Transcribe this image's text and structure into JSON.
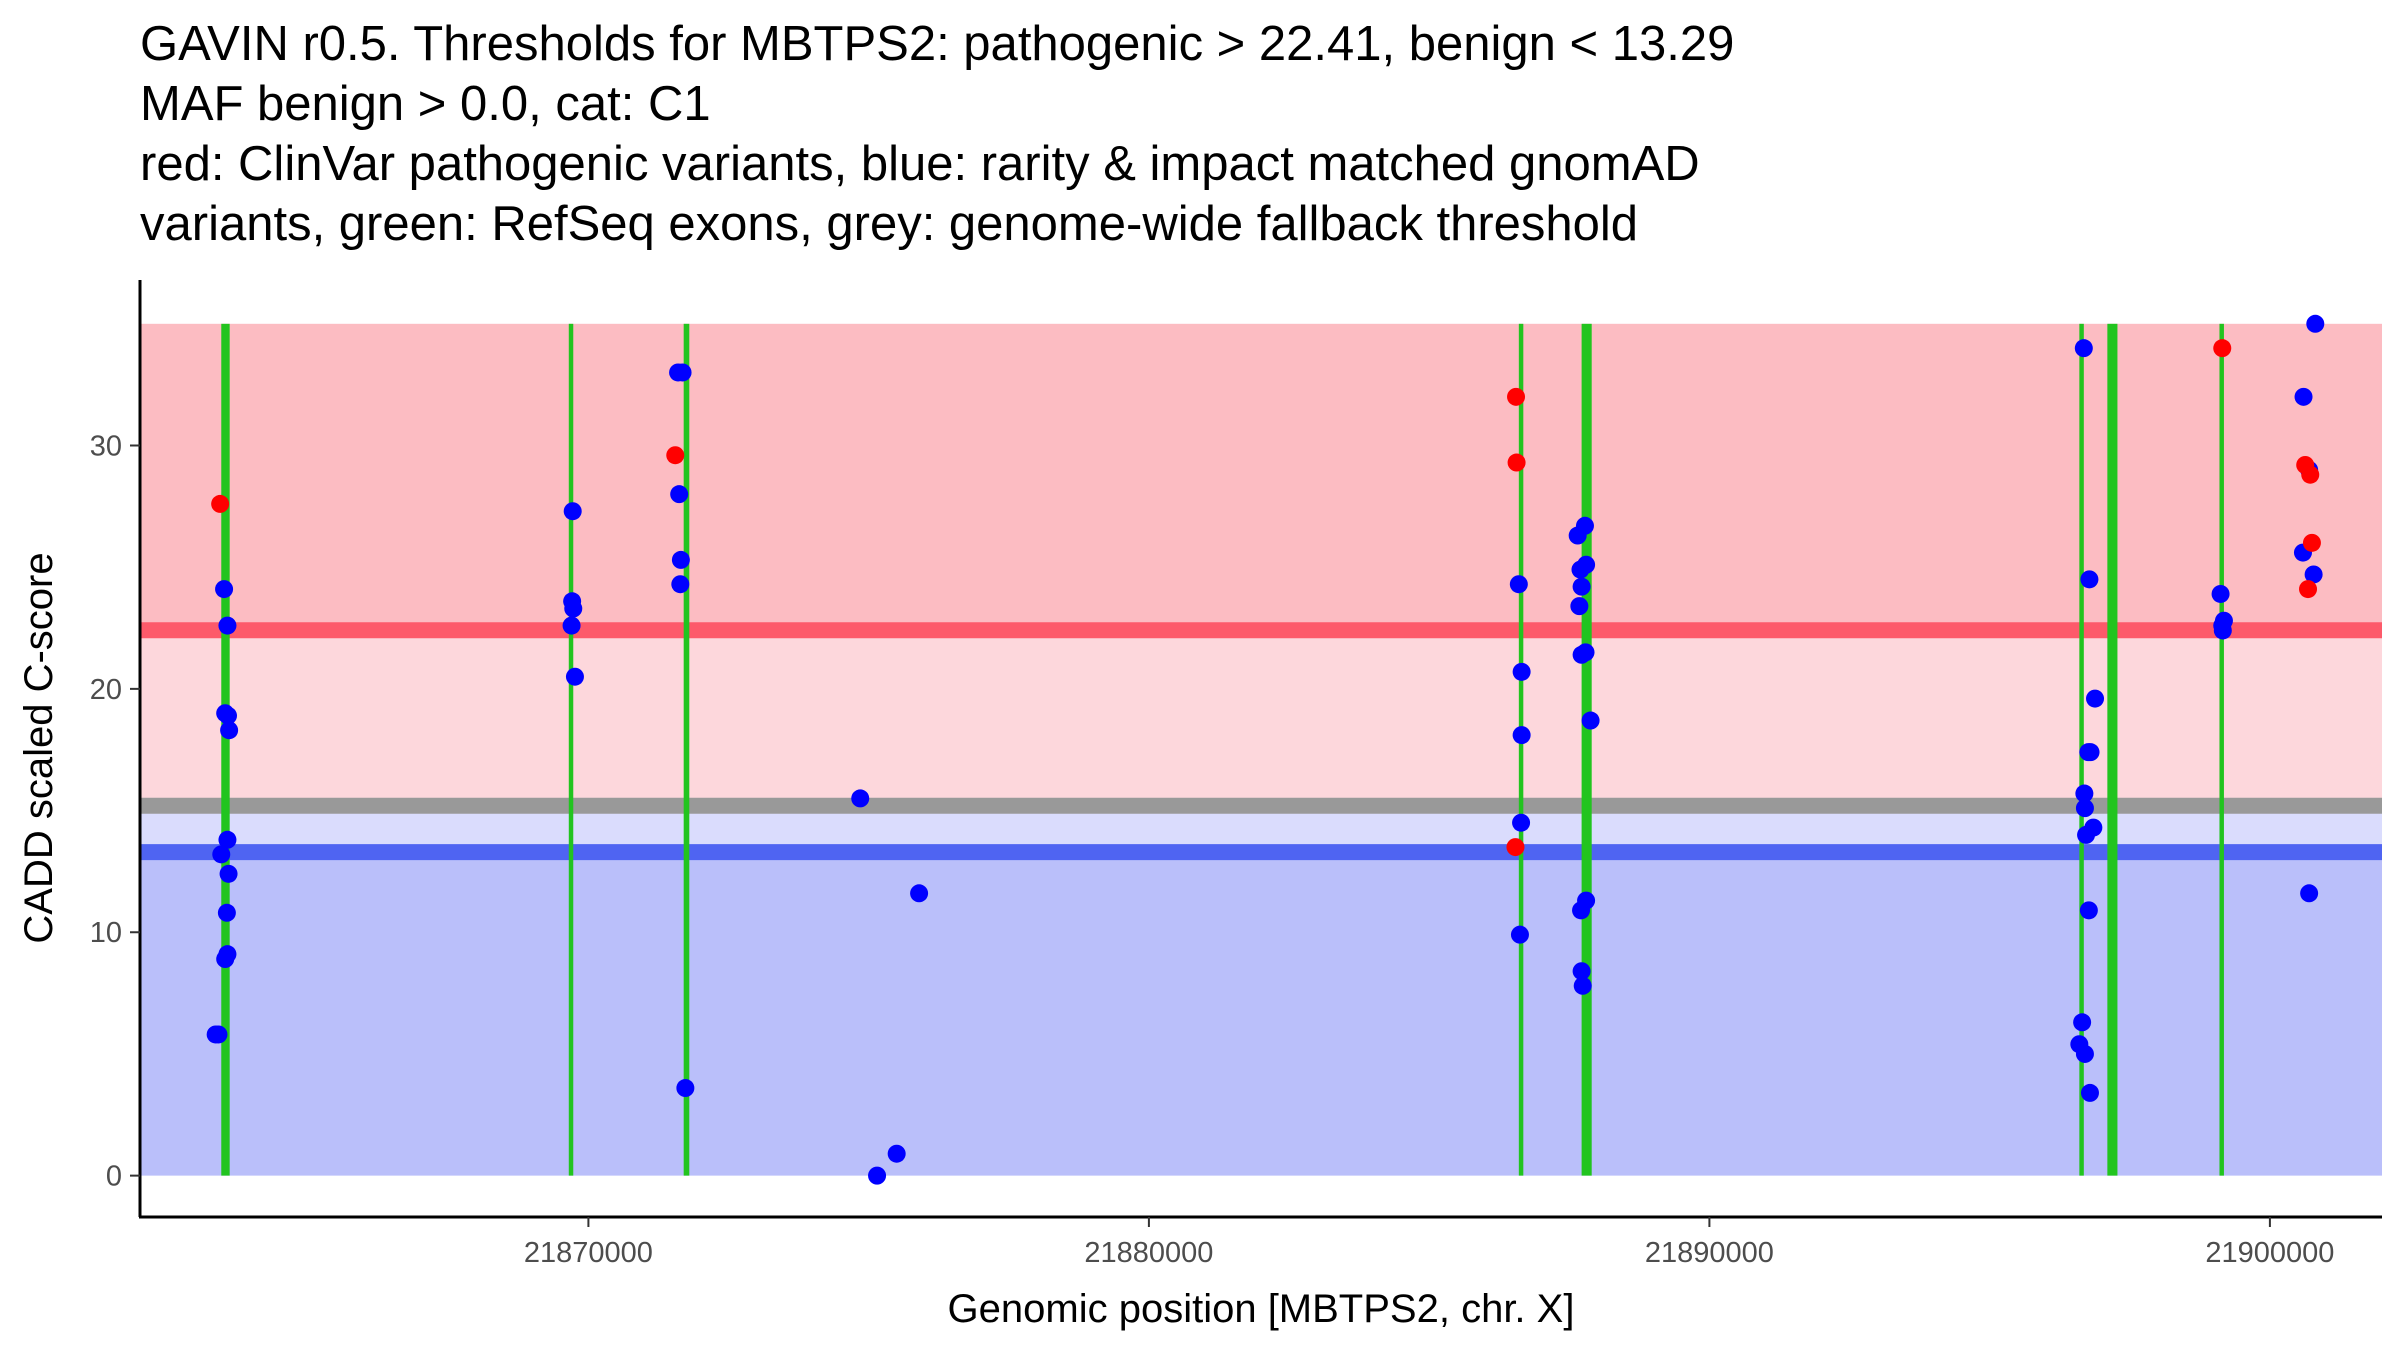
{
  "chart_data": {
    "type": "scatter",
    "title_lines": [
      "GAVIN r0.5. Thresholds for MBTPS2: pathogenic > 22.41, benign < 13.29",
      "MAF benign > 0.0, cat: C1",
      "red: ClinVar pathogenic variants, blue: rarity & impact matched gnomAD",
      "variants, green: RefSeq exons, grey: genome-wide fallback threshold"
    ],
    "xlabel": "Genomic position [MBTPS2, chr. X]",
    "ylabel": "CADD scaled C-score",
    "xlim": [
      21862000,
      21902000
    ],
    "ylim": [
      -1.7,
      36.8
    ],
    "x_ticks": [
      {
        "value": 21870000,
        "label": "21870000"
      },
      {
        "value": 21880000,
        "label": "21880000"
      },
      {
        "value": 21890000,
        "label": "21890000"
      },
      {
        "value": 21900000,
        "label": "21900000"
      }
    ],
    "y_ticks": [
      {
        "value": 0,
        "label": "0"
      },
      {
        "value": 10,
        "label": "10"
      },
      {
        "value": 20,
        "label": "20"
      },
      {
        "value": 30,
        "label": "30"
      }
    ],
    "thresholds": {
      "pathogenic": 22.41,
      "benign": 13.29,
      "fallback": 15.2,
      "max_score": 35
    },
    "bands": [
      {
        "name": "pathogenic-zone",
        "y0": 22.41,
        "y1": 35,
        "color": "#fcbcc2"
      },
      {
        "name": "pathogenic-gap-zone",
        "y0": 15.2,
        "y1": 22.41,
        "color": "#fdd7dc"
      },
      {
        "name": "benign-gap-zone",
        "y0": 13.29,
        "y1": 15.2,
        "color": "#dadcfd"
      },
      {
        "name": "benign-zone",
        "y0": 0,
        "y1": 13.29,
        "color": "#babffa"
      }
    ],
    "threshold_lines": [
      {
        "name": "pathogenic-threshold-line",
        "value": 22.41,
        "color": "#fd5a6a"
      },
      {
        "name": "fallback-threshold-line",
        "value": 15.2,
        "color": "#999999"
      },
      {
        "name": "benign-threshold-line",
        "value": 13.29,
        "color": "#4f64f2"
      }
    ],
    "exons": [
      {
        "start": 21863450,
        "end": 21863600
      },
      {
        "start": 21869650,
        "end": 21869730
      },
      {
        "start": 21871700,
        "end": 21871800
      },
      {
        "start": 21886600,
        "end": 21886680
      },
      {
        "start": 21887720,
        "end": 21887900
      },
      {
        "start": 21896600,
        "end": 21896680
      },
      {
        "start": 21897100,
        "end": 21897280
      },
      {
        "start": 21899100,
        "end": 21899180
      }
    ],
    "series": [
      {
        "name": "ClinVar pathogenic variants",
        "color": "#ff0000",
        "points": [
          {
            "x": 21863430,
            "y": 27.6
          },
          {
            "x": 21871550,
            "y": 29.6
          },
          {
            "x": 21886550,
            "y": 32.0
          },
          {
            "x": 21886560,
            "y": 29.3
          },
          {
            "x": 21886540,
            "y": 13.5
          },
          {
            "x": 21899150,
            "y": 34.0
          },
          {
            "x": 21900630,
            "y": 29.2
          },
          {
            "x": 21900720,
            "y": 28.8
          },
          {
            "x": 21900750,
            "y": 26.0
          },
          {
            "x": 21900680,
            "y": 24.1
          }
        ]
      },
      {
        "name": "rarity & impact matched gnomAD variants",
        "color": "#0000ff",
        "points": [
          {
            "x": 21863500,
            "y": 24.1
          },
          {
            "x": 21863560,
            "y": 22.6
          },
          {
            "x": 21863520,
            "y": 19.0
          },
          {
            "x": 21863570,
            "y": 18.9
          },
          {
            "x": 21863590,
            "y": 18.3
          },
          {
            "x": 21863560,
            "y": 13.8
          },
          {
            "x": 21863450,
            "y": 13.2
          },
          {
            "x": 21863580,
            "y": 12.4
          },
          {
            "x": 21863550,
            "y": 10.8
          },
          {
            "x": 21863560,
            "y": 9.1
          },
          {
            "x": 21863520,
            "y": 8.9
          },
          {
            "x": 21863350,
            "y": 5.8
          },
          {
            "x": 21863400,
            "y": 5.8
          },
          {
            "x": 21869720,
            "y": 27.3
          },
          {
            "x": 21869710,
            "y": 23.6
          },
          {
            "x": 21869730,
            "y": 23.3
          },
          {
            "x": 21869700,
            "y": 22.6
          },
          {
            "x": 21869760,
            "y": 20.5
          },
          {
            "x": 21871600,
            "y": 33.0
          },
          {
            "x": 21871680,
            "y": 33.0
          },
          {
            "x": 21871620,
            "y": 28.0
          },
          {
            "x": 21871650,
            "y": 25.3
          },
          {
            "x": 21871640,
            "y": 24.3
          },
          {
            "x": 21871730,
            "y": 3.6
          },
          {
            "x": 21874850,
            "y": 15.5
          },
          {
            "x": 21875150,
            "y": 0.0
          },
          {
            "x": 21875500,
            "y": 0.9
          },
          {
            "x": 21875900,
            "y": 11.6
          },
          {
            "x": 21886600,
            "y": 24.3
          },
          {
            "x": 21886650,
            "y": 20.7
          },
          {
            "x": 21886650,
            "y": 18.1
          },
          {
            "x": 21886640,
            "y": 14.5
          },
          {
            "x": 21886620,
            "y": 9.9
          },
          {
            "x": 21887650,
            "y": 26.3
          },
          {
            "x": 21887780,
            "y": 26.7
          },
          {
            "x": 21887700,
            "y": 24.9
          },
          {
            "x": 21887800,
            "y": 25.1
          },
          {
            "x": 21887720,
            "y": 24.2
          },
          {
            "x": 21887680,
            "y": 23.4
          },
          {
            "x": 21887720,
            "y": 21.4
          },
          {
            "x": 21887790,
            "y": 21.5
          },
          {
            "x": 21887880,
            "y": 18.7
          },
          {
            "x": 21887800,
            "y": 11.3
          },
          {
            "x": 21887710,
            "y": 10.9
          },
          {
            "x": 21887720,
            "y": 8.4
          },
          {
            "x": 21887740,
            "y": 7.8
          },
          {
            "x": 21896680,
            "y": 34.0
          },
          {
            "x": 21896780,
            "y": 24.5
          },
          {
            "x": 21896880,
            "y": 19.6
          },
          {
            "x": 21896800,
            "y": 17.4
          },
          {
            "x": 21896760,
            "y": 17.4
          },
          {
            "x": 21896690,
            "y": 15.7
          },
          {
            "x": 21896700,
            "y": 15.1
          },
          {
            "x": 21896850,
            "y": 14.3
          },
          {
            "x": 21896720,
            "y": 14.0
          },
          {
            "x": 21896770,
            "y": 10.9
          },
          {
            "x": 21896650,
            "y": 6.3
          },
          {
            "x": 21896600,
            "y": 5.4
          },
          {
            "x": 21896700,
            "y": 5.0
          },
          {
            "x": 21896790,
            "y": 3.4
          },
          {
            "x": 21899120,
            "y": 23.9
          },
          {
            "x": 21899180,
            "y": 22.8
          },
          {
            "x": 21899150,
            "y": 22.6
          },
          {
            "x": 21899160,
            "y": 22.4
          },
          {
            "x": 21900600,
            "y": 32.0
          },
          {
            "x": 21900810,
            "y": 35.0
          },
          {
            "x": 21900700,
            "y": 29.0
          },
          {
            "x": 21900590,
            "y": 25.6
          },
          {
            "x": 21900780,
            "y": 24.7
          },
          {
            "x": 21900700,
            "y": 11.6
          }
        ]
      }
    ]
  }
}
